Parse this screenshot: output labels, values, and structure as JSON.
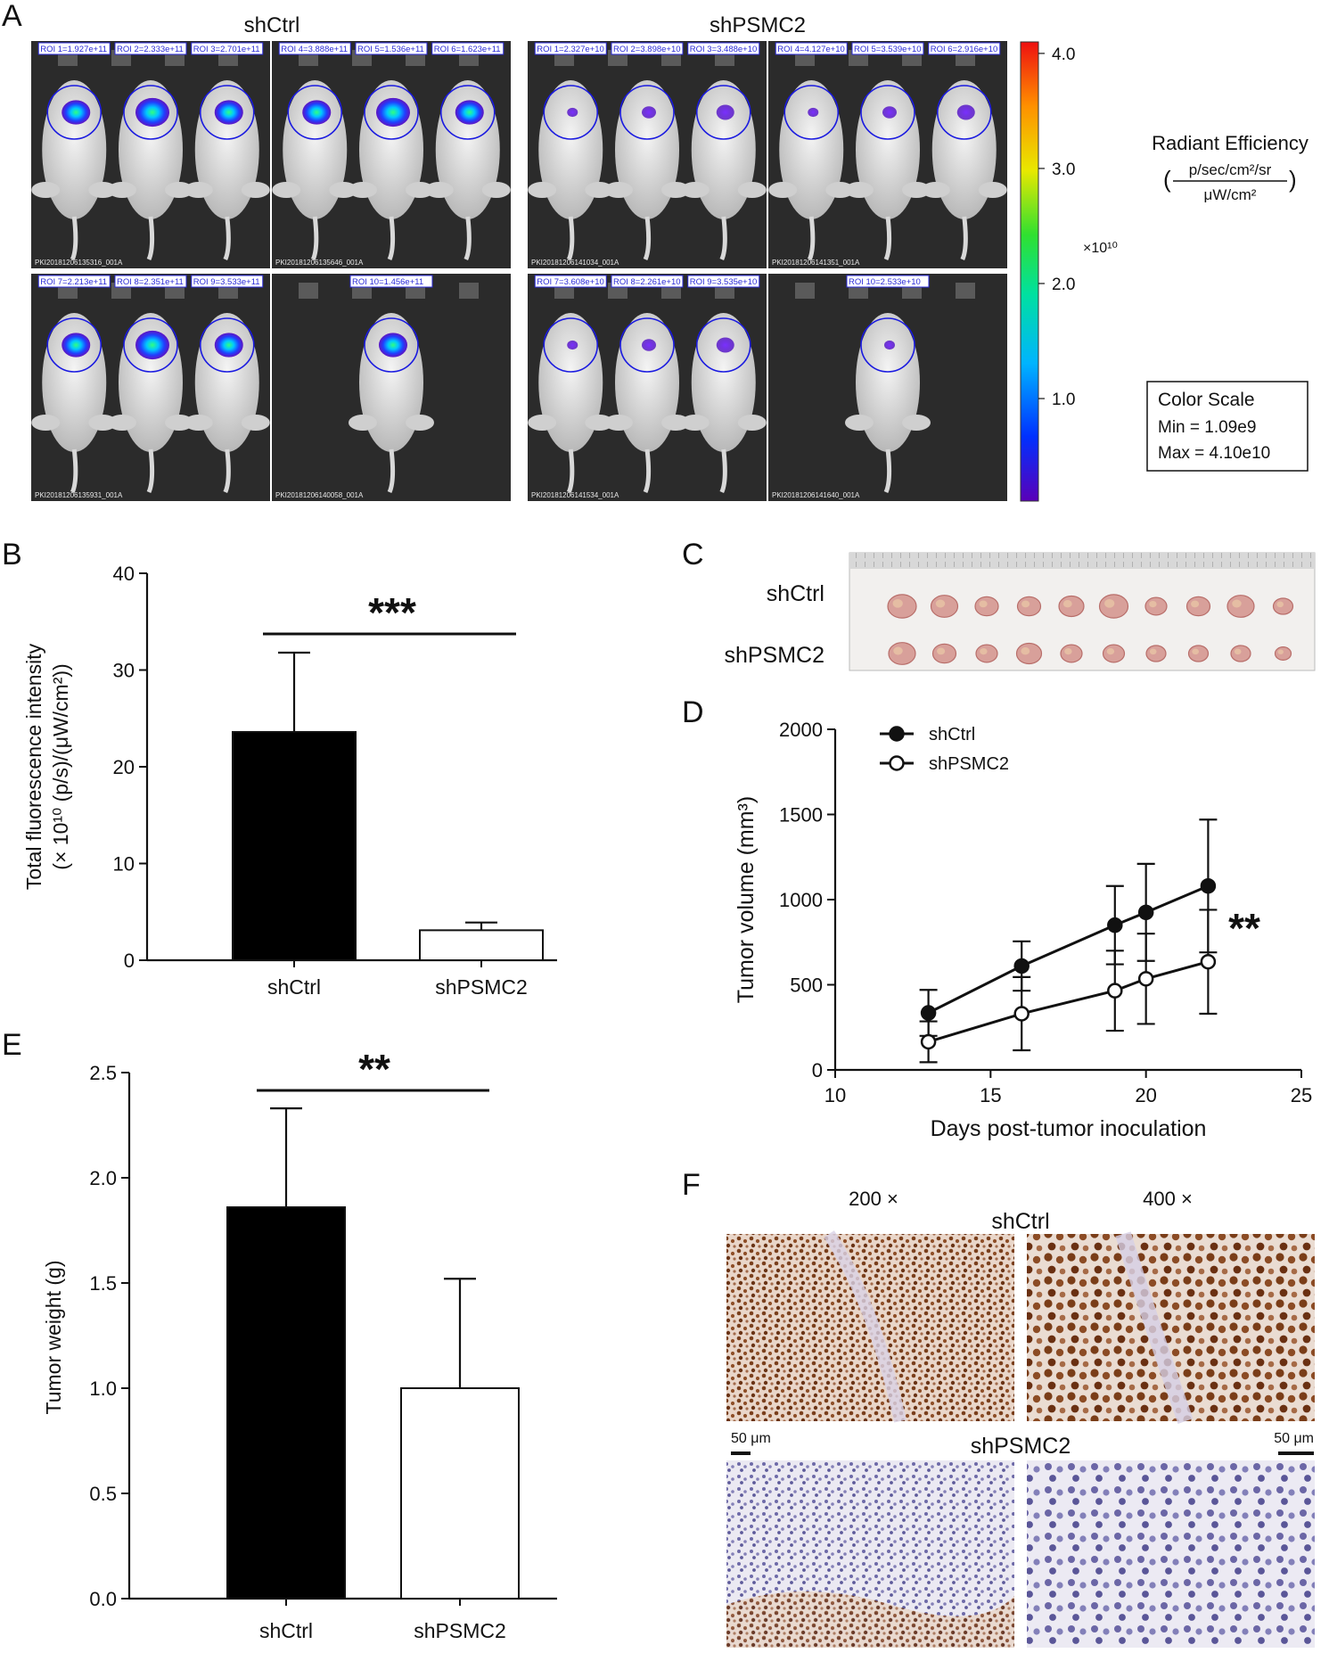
{
  "panel_labels": [
    "A",
    "B",
    "C",
    "D",
    "E",
    "F"
  ],
  "panelA": {
    "group_labels": [
      "shCtrl",
      "shPSMC2"
    ],
    "roi_labels": [
      [
        "ROI 1=1.927e+11",
        "ROI 2=2.333e+11",
        "ROI 3=2.701e+11"
      ],
      [
        "ROI 4=3.888e+11",
        "ROI 5=1.536e+11",
        "ROI 6=1.623e+11"
      ],
      [
        "ROI 7=2.213e+11",
        "ROI 8=2.351e+11",
        "ROI 9=3.533e+11"
      ],
      [
        "ROI 10=1.456e+11"
      ],
      [
        "ROI 1=2.327e+10",
        "ROI 2=3.898e+10",
        "ROI 3=3.488e+10"
      ],
      [
        "ROI 4=4.127e+10",
        "ROI 5=3.539e+10",
        "ROI 6=2.916e+10"
      ],
      [
        "ROI 7=3.608e+10",
        "ROI 8=2.261e+10",
        "ROI 9=3.535e+10"
      ],
      [
        "ROI 10=2.533e+10"
      ]
    ],
    "image_ids": [
      "PKI20181206135316_001A",
      "PKI20181206135646_001A",
      "PKI20181206135931_001A",
      "PKI20181206140058_001A",
      "PKI20181206141034_001A",
      "PKI20181206141351_001A",
      "PKI20181206141534_001A",
      "PKI20181206141640_001A"
    ],
    "colorbar_ticks": [
      "4.0",
      "3.0",
      "2.0",
      "1.0"
    ],
    "colorbar_multiplier": "×10¹⁰",
    "radiant_title": "Radiant Efficiency",
    "radiant_num": "p/sec/cm²/sr",
    "radiant_den": "μW/cm²",
    "color_scale": {
      "title": "Color Scale",
      "min": "Min = 1.09e9",
      "max": "Max = 4.10e10"
    }
  },
  "panelC": {
    "row_labels": [
      "shCtrl",
      "shPSMC2"
    ]
  },
  "panelF": {
    "mag_labels": [
      "200 ×",
      "400 ×"
    ],
    "group_labels": [
      "shCtrl",
      "shPSMC2"
    ],
    "scale_labels": [
      "50 μm",
      "50 μm"
    ]
  },
  "chart_data": [
    {
      "id": "B",
      "type": "bar",
      "categories": [
        "shCtrl",
        "shPSMC2"
      ],
      "values": [
        23.6,
        3.1
      ],
      "errors": [
        8.2,
        0.8
      ],
      "fills": [
        "#000000",
        "#ffffff"
      ],
      "ylabel_line1": "Total fluorescence intensity",
      "ylabel_line2": "(× 10¹⁰ (p/s)/(μW/cm²))",
      "ylim": [
        0,
        40
      ],
      "yticks": [
        0,
        10,
        20,
        30,
        40
      ],
      "significance": "***"
    },
    {
      "id": "D",
      "type": "line",
      "xlabel": "Days post-tumor inoculation",
      "ylabel": "Tumor volume (mm³)",
      "xlim": [
        10,
        25
      ],
      "ylim": [
        0,
        2000
      ],
      "xticks": [
        10,
        15,
        20,
        25
      ],
      "yticks": [
        0,
        500,
        1000,
        1500,
        2000
      ],
      "legend_position": "top-left",
      "series": [
        {
          "name": "shCtrl",
          "marker": "filled-circle",
          "x": [
            13,
            16,
            19,
            20,
            22
          ],
          "y": [
            335,
            610,
            850,
            925,
            1080
          ],
          "err": [
            135,
            145,
            230,
            285,
            390
          ]
        },
        {
          "name": "shPSMC2",
          "marker": "open-circle",
          "x": [
            13,
            16,
            19,
            20,
            22
          ],
          "y": [
            165,
            330,
            465,
            535,
            635
          ],
          "err": [
            120,
            215,
            235,
            265,
            305
          ]
        }
      ],
      "significance": "**"
    },
    {
      "id": "E",
      "type": "bar",
      "categories": [
        "shCtrl",
        "shPSMC2"
      ],
      "values": [
        1.86,
        1.0
      ],
      "errors": [
        0.47,
        0.52
      ],
      "fills": [
        "#000000",
        "#ffffff"
      ],
      "ylabel": "Tumor weight (g)",
      "ylim": [
        0,
        2.5
      ],
      "yticks": [
        "0.0",
        "0.5",
        "1.0",
        "1.5",
        "2.0",
        "2.5"
      ],
      "significance": "**"
    }
  ]
}
